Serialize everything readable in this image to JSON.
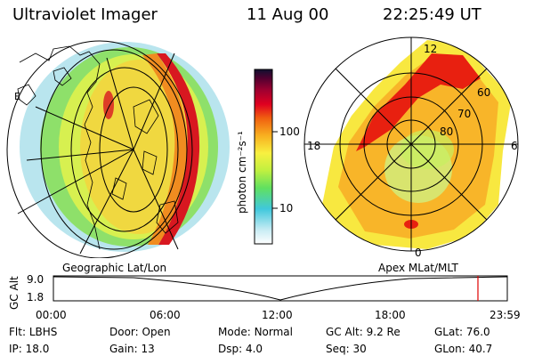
{
  "header": {
    "instrument": "Ultraviolet Imager",
    "date": "11 Aug 00",
    "time": "22:25:49 UT"
  },
  "colorbar": {
    "unit_label": "photon cm⁻²s⁻¹",
    "ticks": [
      "100",
      "10"
    ],
    "scale": "log",
    "colors": [
      "#ffffff",
      "#c8ecf4",
      "#40c8dc",
      "#60e060",
      "#c0f040",
      "#f8f040",
      "#f8b020",
      "#f06010",
      "#e00020",
      "#a00030",
      "#500030",
      "#101030"
    ]
  },
  "left_panel": {
    "label": "Geographic Lat/Lon",
    "bands": [
      "#7fd0e0",
      "#8ee06a",
      "#d7f050",
      "#f0d840",
      "#f08c20",
      "#d81820"
    ]
  },
  "right_panel": {
    "label": "Apex MLat/MLT",
    "mlt_labels": {
      "top": "12",
      "left": "18",
      "right": "6",
      "bottom": "0"
    },
    "mlat_labels": [
      "60",
      "70",
      "80"
    ],
    "colors": {
      "base": "#f8e840",
      "warm": "#f8a020",
      "hot": "#e82010",
      "outer": "#d0f080",
      "cool": "#c8f060"
    }
  },
  "altitude_plot": {
    "ylabel": "GC Alt",
    "yticks": [
      "9.0",
      "1.8"
    ],
    "xticks": [
      "00:00",
      "06:00",
      "12:00",
      "18:00",
      "23:59"
    ],
    "marker_color": "#e00000"
  },
  "status": {
    "row1": [
      {
        "k": "Flt:",
        "v": "LBHS"
      },
      {
        "k": "Door:",
        "v": "Open"
      },
      {
        "k": "Mode:",
        "v": "Normal"
      },
      {
        "k": "GC Alt:",
        "v": "9.2 Re"
      },
      {
        "k": "GLat:",
        "v": "76.0"
      }
    ],
    "row2": [
      {
        "k": "IP:",
        "v": "18.0"
      },
      {
        "k": "Gain:",
        "v": "13"
      },
      {
        "k": "Dsp:",
        "v": "4.0"
      },
      {
        "k": "Seq:",
        "v": "30"
      },
      {
        "k": "GLon:",
        "v": "40.7"
      }
    ]
  }
}
